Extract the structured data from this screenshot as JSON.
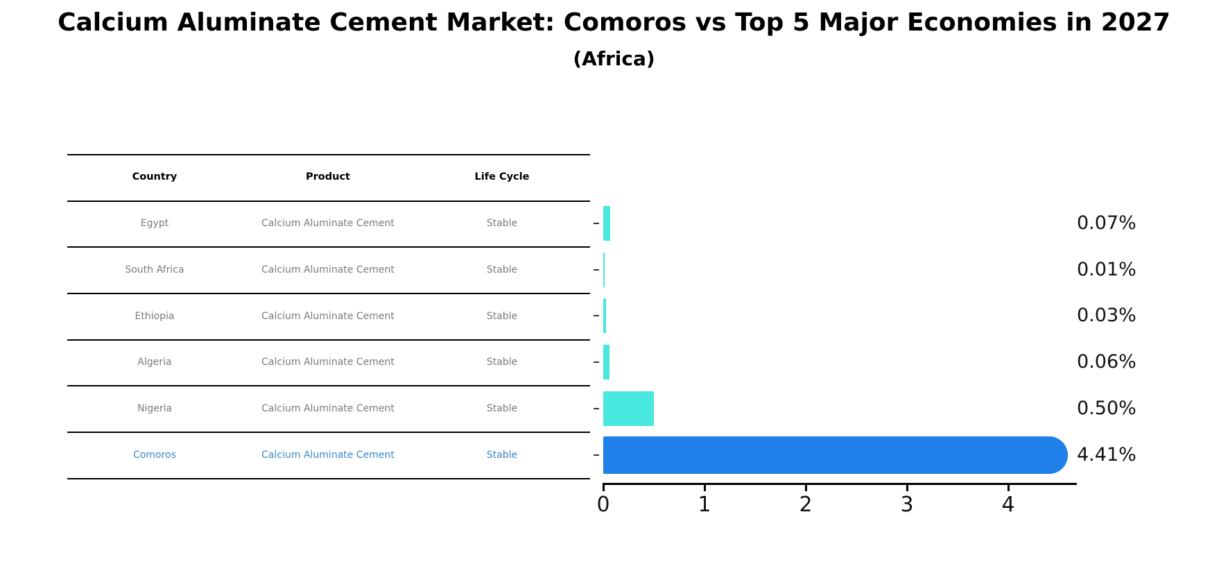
{
  "title": "Calcium Aluminate Cement Market: Comoros vs Top 5 Major Economies in 2027",
  "subtitle": "(Africa)",
  "table": {
    "headers": [
      "Country",
      "Product",
      "Life Cycle"
    ],
    "rows": [
      {
        "country": "Egypt",
        "product": "Calcium Aluminate Cement",
        "life_cycle": "Stable",
        "highlighted": false
      },
      {
        "country": "South Africa",
        "product": "Calcium Aluminate Cement",
        "life_cycle": "Stable",
        "highlighted": false
      },
      {
        "country": "Ethiopia",
        "product": "Calcium Aluminate Cement",
        "life_cycle": "Stable",
        "highlighted": false
      },
      {
        "country": "Algeria",
        "product": "Calcium Aluminate Cement",
        "life_cycle": "Stable",
        "highlighted": false
      },
      {
        "country": "Nigeria",
        "product": "Calcium Aluminate Cement",
        "life_cycle": "Stable",
        "highlighted": false
      },
      {
        "country": "Comoros",
        "product": "Calcium Aluminate Cement",
        "life_cycle": "Stable",
        "highlighted": true
      }
    ]
  },
  "chart_data": {
    "type": "bar",
    "orientation": "horizontal",
    "categories": [
      "Egypt",
      "South Africa",
      "Ethiopia",
      "Algeria",
      "Nigeria",
      "Comoros"
    ],
    "values": [
      0.07,
      0.01,
      0.03,
      0.06,
      0.5,
      4.41
    ],
    "value_labels": [
      "0.07%",
      "0.01%",
      "0.03%",
      "0.06%",
      "0.50%",
      "4.41%"
    ],
    "highlight_index": 5,
    "x_ticks": [
      "0",
      "1",
      "2",
      "3",
      "4"
    ],
    "xlim": [
      0,
      4.68
    ],
    "grid": false,
    "legend": "none",
    "bar_color": "#48e8e0",
    "highlight_bar_color": "#1e80e8",
    "highlight_text_color": "#3987c9"
  }
}
